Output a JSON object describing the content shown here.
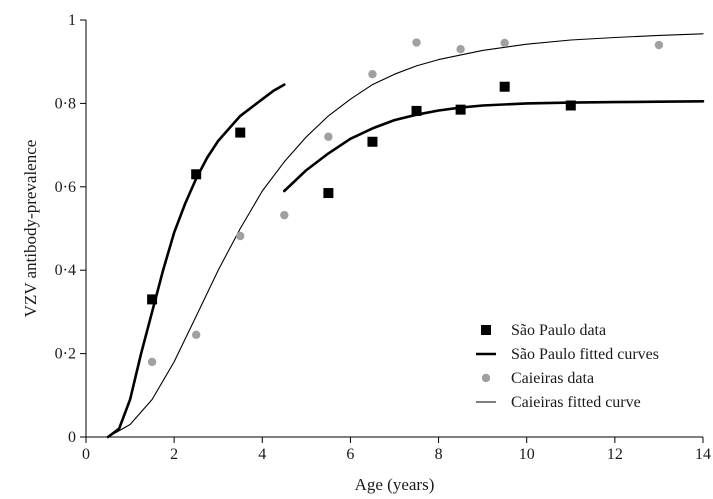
{
  "chart_data": {
    "type": "scatter",
    "xlabel": "Age (years)",
    "ylabel": "VZV antibody-prevalence",
    "xlim": [
      0,
      14
    ],
    "ylim": [
      0,
      1
    ],
    "x_ticks": [
      0,
      2,
      4,
      6,
      8,
      10,
      12,
      14
    ],
    "y_ticks": [
      0,
      0.2,
      0.4,
      0.6,
      0.8,
      1
    ],
    "x_tick_labels": [
      "0",
      "2",
      "4",
      "6",
      "8",
      "10",
      "12",
      "14"
    ],
    "y_tick_labels": [
      "0",
      "0·2",
      "0·4",
      "0·6",
      "0·8",
      "1"
    ],
    "grid": false,
    "legend_position": "bottom-right",
    "series": [
      {
        "name": "São Paulo data",
        "kind": "points",
        "marker": "square",
        "color": "#000000",
        "x": [
          1.5,
          2.5,
          3.5,
          5.5,
          6.5,
          7.5,
          8.5,
          9.5,
          11.0
        ],
        "y": [
          0.33,
          0.63,
          0.73,
          0.585,
          0.708,
          0.782,
          0.785,
          0.84,
          0.795
        ]
      },
      {
        "name": "São Paulo fitted curves",
        "kind": "line",
        "stroke": "thick",
        "color": "#000000",
        "segments": [
          {
            "x": [
              0.5,
              0.75,
              1.0,
              1.25,
              1.5,
              1.75,
              2.0,
              2.25,
              2.5,
              2.75,
              3.0,
              3.25,
              3.5,
              3.75,
              4.0,
              4.25,
              4.5
            ],
            "y": [
              0.0,
              0.02,
              0.09,
              0.2,
              0.3,
              0.4,
              0.49,
              0.56,
              0.62,
              0.67,
              0.71,
              0.74,
              0.77,
              0.79,
              0.81,
              0.83,
              0.845
            ]
          },
          {
            "x": [
              4.5,
              5.0,
              5.5,
              6.0,
              6.5,
              7.0,
              7.5,
              8.0,
              8.5,
              9.0,
              10.0,
              11.0,
              12.0,
              13.0,
              14.0
            ],
            "y": [
              0.59,
              0.64,
              0.68,
              0.715,
              0.74,
              0.76,
              0.773,
              0.783,
              0.79,
              0.795,
              0.8,
              0.802,
              0.803,
              0.804,
              0.805
            ]
          }
        ]
      },
      {
        "name": "Caieiras data",
        "kind": "points",
        "marker": "circle",
        "color": "#a0a0a0",
        "x": [
          1.5,
          2.5,
          3.5,
          4.5,
          5.5,
          6.5,
          7.5,
          8.5,
          9.5,
          13.0
        ],
        "y": [
          0.18,
          0.245,
          0.482,
          0.532,
          0.72,
          0.87,
          0.946,
          0.93,
          0.945,
          0.94
        ]
      },
      {
        "name": "Caieiras fitted curve",
        "kind": "line",
        "stroke": "thin",
        "color": "#000000",
        "segments": [
          {
            "x": [
              0.5,
              1.0,
              1.5,
              2.0,
              2.5,
              3.0,
              3.5,
              4.0,
              4.5,
              5.0,
              5.5,
              6.0,
              6.5,
              7.0,
              7.5,
              8.0,
              9.0,
              10.0,
              11.0,
              12.0,
              13.0,
              14.0
            ],
            "y": [
              0.0,
              0.03,
              0.09,
              0.18,
              0.29,
              0.4,
              0.5,
              0.59,
              0.66,
              0.72,
              0.77,
              0.81,
              0.845,
              0.87,
              0.89,
              0.905,
              0.927,
              0.942,
              0.952,
              0.958,
              0.963,
              0.967
            ]
          }
        ]
      }
    ]
  }
}
